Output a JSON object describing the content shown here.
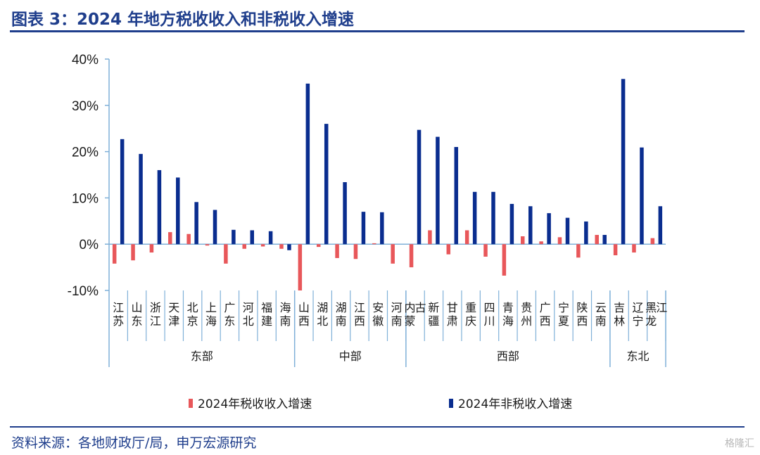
{
  "header": {
    "title": "图表 3：2024 年地方税收收入和非税收入增速"
  },
  "footer": {
    "source": "资料来源：各地财政厅/局，申万宏源研究",
    "watermark": "格隆汇"
  },
  "colors": {
    "tax": "#e8575a",
    "nontax": "#0a2d8f",
    "axis": "#7fb0d8",
    "title": "#1f3e8c"
  },
  "chart_data": {
    "type": "bar",
    "title": "图表 3：2024 年地方税收收入和非税收入增速",
    "ylim": [
      -10,
      40
    ],
    "y_ticks": [
      -10,
      0,
      10,
      20,
      30,
      40
    ],
    "y_tick_labels": [
      "-10%",
      "0%",
      "10%",
      "20%",
      "30%",
      "40%"
    ],
    "categories": [
      "江苏",
      "山东",
      "浙江",
      "天津",
      "北京",
      "上海",
      "广东",
      "河北",
      "福建",
      "海南",
      "山西",
      "湖北",
      "湖南",
      "江西",
      "安徽",
      "河南",
      "内蒙古",
      "新疆",
      "甘肃",
      "重庆",
      "四川",
      "青海",
      "贵州",
      "广西",
      "宁夏",
      "陕西",
      "云南",
      "吉林",
      "辽宁",
      "黑龙江"
    ],
    "groups": [
      {
        "name": "东部",
        "start": 0,
        "end": 9
      },
      {
        "name": "中部",
        "start": 10,
        "end": 15
      },
      {
        "name": "西部",
        "start": 16,
        "end": 26
      },
      {
        "name": "东北",
        "start": 27,
        "end": 29
      }
    ],
    "series": [
      {
        "name": "2024年税收收入增速",
        "color": "#e8575a",
        "values": [
          -4.2,
          -3.5,
          -1.8,
          2.6,
          2.2,
          -0.3,
          -4.2,
          -1.0,
          -0.5,
          -1.0,
          -10.0,
          -0.6,
          -3.0,
          -3.2,
          0.2,
          -4.2,
          -5.0,
          3.0,
          -2.2,
          3.0,
          -2.7,
          -6.8,
          1.7,
          0.6,
          1.5,
          -2.9,
          2.0,
          -2.4,
          -1.8,
          1.3
        ]
      },
      {
        "name": "2024年非税收入增速",
        "color": "#0a2d8f",
        "values": [
          22.7,
          19.5,
          16.0,
          14.4,
          9.1,
          7.4,
          3.1,
          3.0,
          2.8,
          -1.3,
          34.7,
          26.0,
          13.4,
          7.0,
          6.9,
          0.0,
          24.7,
          23.2,
          21.0,
          11.3,
          11.3,
          8.7,
          8.2,
          6.7,
          5.7,
          4.9,
          2.0,
          35.7,
          20.9,
          8.2
        ]
      }
    ],
    "legend": {
      "position": "bottom"
    }
  }
}
